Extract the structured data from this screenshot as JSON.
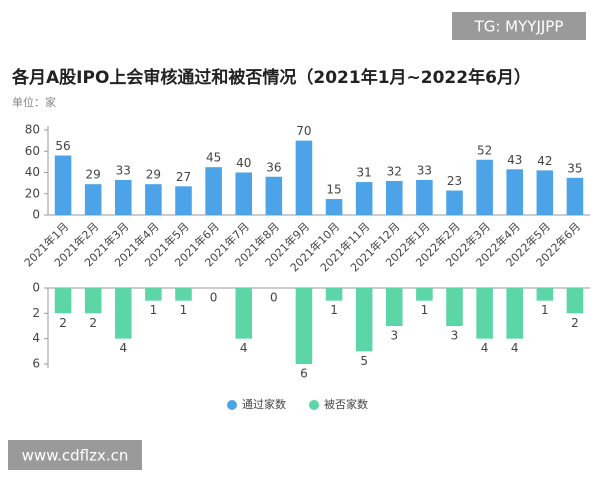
{
  "chart_data": {
    "type": "bar",
    "title": "各月A股IPO上会审核通过和被否情况（2021年1月~2022年6月）",
    "unit": "单位：家",
    "categories": [
      "2021年1月",
      "2021年2月",
      "2021年3月",
      "2021年4月",
      "2021年5月",
      "2021年6月",
      "2021年7月",
      "2021年8月",
      "2021年9月",
      "2021年10月",
      "2021年11月",
      "2021年12月",
      "2022年1月",
      "2022年2月",
      "2022年3月",
      "2022年4月",
      "2022年5月",
      "2022年6月"
    ],
    "series": [
      {
        "name": "通过家数",
        "color": "#4da3e8",
        "values": [
          56,
          29,
          33,
          29,
          27,
          45,
          40,
          36,
          70,
          15,
          31,
          32,
          33,
          23,
          52,
          43,
          42,
          35
        ]
      },
      {
        "name": "被否家数",
        "color": "#5dd6a7",
        "axis": "y2",
        "values": [
          2,
          2,
          4,
          1,
          1,
          0,
          4,
          0,
          6,
          1,
          5,
          3,
          1,
          3,
          4,
          4,
          1,
          2
        ]
      }
    ],
    "ylim": [
      0,
      80
    ],
    "yticks": [
      0,
      20,
      40,
      60,
      80
    ],
    "y2lim": [
      0,
      6
    ],
    "y2ticks": [
      0,
      2,
      4,
      6
    ],
    "y2_inverted": true,
    "grid": false,
    "legend": "bottom"
  },
  "watermarks": [
    "TG: MYYJJPP",
    "www.cdflzx.cn"
  ]
}
